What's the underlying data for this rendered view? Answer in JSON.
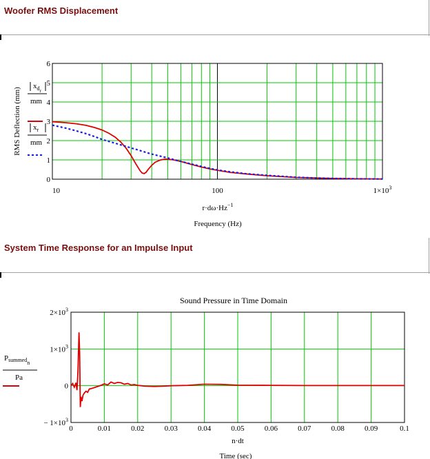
{
  "sections": [
    {
      "heading": "Woofer RMS Displacement"
    },
    {
      "heading": "System Time Response for an Impulse Input"
    }
  ],
  "chart_data": [
    {
      "type": "line",
      "xscale": "log",
      "xlim": [
        10,
        1000
      ],
      "ylim": [
        0,
        6
      ],
      "title": "",
      "ylabel": "RMS Deflection (mm)",
      "xlabel_expr": "r·dω·Hz",
      "xlabel_sup": "−1",
      "xlabel": "Frequency (Hz)",
      "xticks": [
        {
          "v": 10,
          "label": "10"
        },
        {
          "v": 100,
          "label": "100"
        },
        {
          "v": 1000,
          "label": "1×10",
          "sup": "3"
        }
      ],
      "yticks": [
        {
          "v": 0,
          "label": "0"
        },
        {
          "v": 1,
          "label": "1"
        },
        {
          "v": 2,
          "label": "2"
        },
        {
          "v": 3,
          "label": "3"
        },
        {
          "v": 4,
          "label": "4"
        },
        {
          "v": 5,
          "label": "5"
        },
        {
          "v": 6,
          "label": "6"
        }
      ],
      "legend": [
        {
          "num": "x",
          "num_sub": "d",
          "num_sub2": "r",
          "den": "mm",
          "style": "solid",
          "color": "#e00000"
        },
        {
          "num": "x",
          "num_sub": "r",
          "den": "mm",
          "style": "dotted",
          "color": "#1a1ae6"
        }
      ],
      "series": [
        {
          "color": "#e00000",
          "style": "solid",
          "x": [
            10,
            12,
            14,
            16,
            18,
            20,
            22,
            24,
            26,
            28,
            30,
            32,
            34,
            35,
            36,
            37,
            38,
            40,
            42,
            45,
            48,
            50,
            55,
            60,
            70,
            80,
            90,
            100,
            110,
            120,
            130,
            150,
            180,
            200,
            300,
            400,
            500,
            700,
            1000
          ],
          "y": [
            2.98,
            2.93,
            2.87,
            2.79,
            2.68,
            2.55,
            2.38,
            2.18,
            1.92,
            1.6,
            1.22,
            0.8,
            0.44,
            0.32,
            0.29,
            0.36,
            0.5,
            0.72,
            0.88,
            0.99,
            1.04,
            1.04,
            0.99,
            0.92,
            0.76,
            0.63,
            0.53,
            0.46,
            0.4,
            0.35,
            0.32,
            0.27,
            0.21,
            0.18,
            0.09,
            0.06,
            0.04,
            0.02,
            0.01
          ]
        },
        {
          "color": "#1a1ae6",
          "style": "dotted",
          "x": [
            10,
            12,
            14,
            16,
            18,
            20,
            25,
            30,
            35,
            40,
            50,
            60,
            70,
            80,
            90,
            100,
            120,
            150,
            200,
            300,
            400,
            500,
            700,
            1000
          ],
          "y": [
            2.8,
            2.65,
            2.5,
            2.36,
            2.21,
            2.06,
            1.82,
            1.62,
            1.45,
            1.3,
            1.1,
            0.92,
            0.78,
            0.66,
            0.56,
            0.48,
            0.38,
            0.28,
            0.2,
            0.1,
            0.06,
            0.04,
            0.02,
            0.01
          ]
        }
      ]
    },
    {
      "type": "line",
      "xlim": [
        0,
        0.1
      ],
      "ylim": [
        -1000,
        2000
      ],
      "title": "Sound Pressure in Time Domain",
      "xlabel_expr": "n·dt",
      "xlabel": "Time (sec)",
      "xticks": [
        {
          "v": 0,
          "label": "0"
        },
        {
          "v": 0.01,
          "label": "0.01"
        },
        {
          "v": 0.02,
          "label": "0.02"
        },
        {
          "v": 0.03,
          "label": "0.03"
        },
        {
          "v": 0.04,
          "label": "0.04"
        },
        {
          "v": 0.05,
          "label": "0.05"
        },
        {
          "v": 0.06,
          "label": "0.06"
        },
        {
          "v": 0.07,
          "label": "0.07"
        },
        {
          "v": 0.08,
          "label": "0.08"
        },
        {
          "v": 0.09,
          "label": "0.09"
        },
        {
          "v": 0.1,
          "label": "0.1"
        }
      ],
      "yticks": [
        {
          "v": -1000,
          "label": "− 1×10",
          "sup": "3"
        },
        {
          "v": 0,
          "label": "0"
        },
        {
          "v": 1000,
          "label": "1×10",
          "sup": "3"
        },
        {
          "v": 2000,
          "label": "2×10",
          "sup": "3"
        }
      ],
      "legend": [
        {
          "num": "P",
          "num_sub": "summed",
          "num_sub2": "n",
          "den": "Pa",
          "style": "solid",
          "color": "#e00000"
        }
      ],
      "series": [
        {
          "color": "#e00000",
          "style": "solid",
          "x": [
            0,
            0.0005,
            0.001,
            0.0015,
            0.0018,
            0.0021,
            0.0024,
            0.0026,
            0.0028,
            0.003,
            0.0033,
            0.0036,
            0.004,
            0.0045,
            0.005,
            0.0055,
            0.006,
            0.007,
            0.008,
            0.009,
            0.01,
            0.011,
            0.012,
            0.013,
            0.014,
            0.015,
            0.016,
            0.017,
            0.018,
            0.019,
            0.02,
            0.022,
            0.025,
            0.028,
            0.03,
            0.035,
            0.04,
            0.045,
            0.05,
            0.06,
            0.07,
            0.08,
            0.09,
            0.1
          ],
          "y": [
            0,
            60,
            -40,
            80,
            -120,
            400,
            1450,
            900,
            -580,
            -300,
            -420,
            -260,
            -200,
            -150,
            -180,
            -90,
            -80,
            -50,
            -20,
            10,
            50,
            20,
            100,
            60,
            90,
            80,
            40,
            60,
            20,
            30,
            10,
            -10,
            -20,
            -10,
            0,
            10,
            40,
            35,
            15,
            10,
            5,
            5,
            5,
            5
          ]
        }
      ]
    }
  ]
}
